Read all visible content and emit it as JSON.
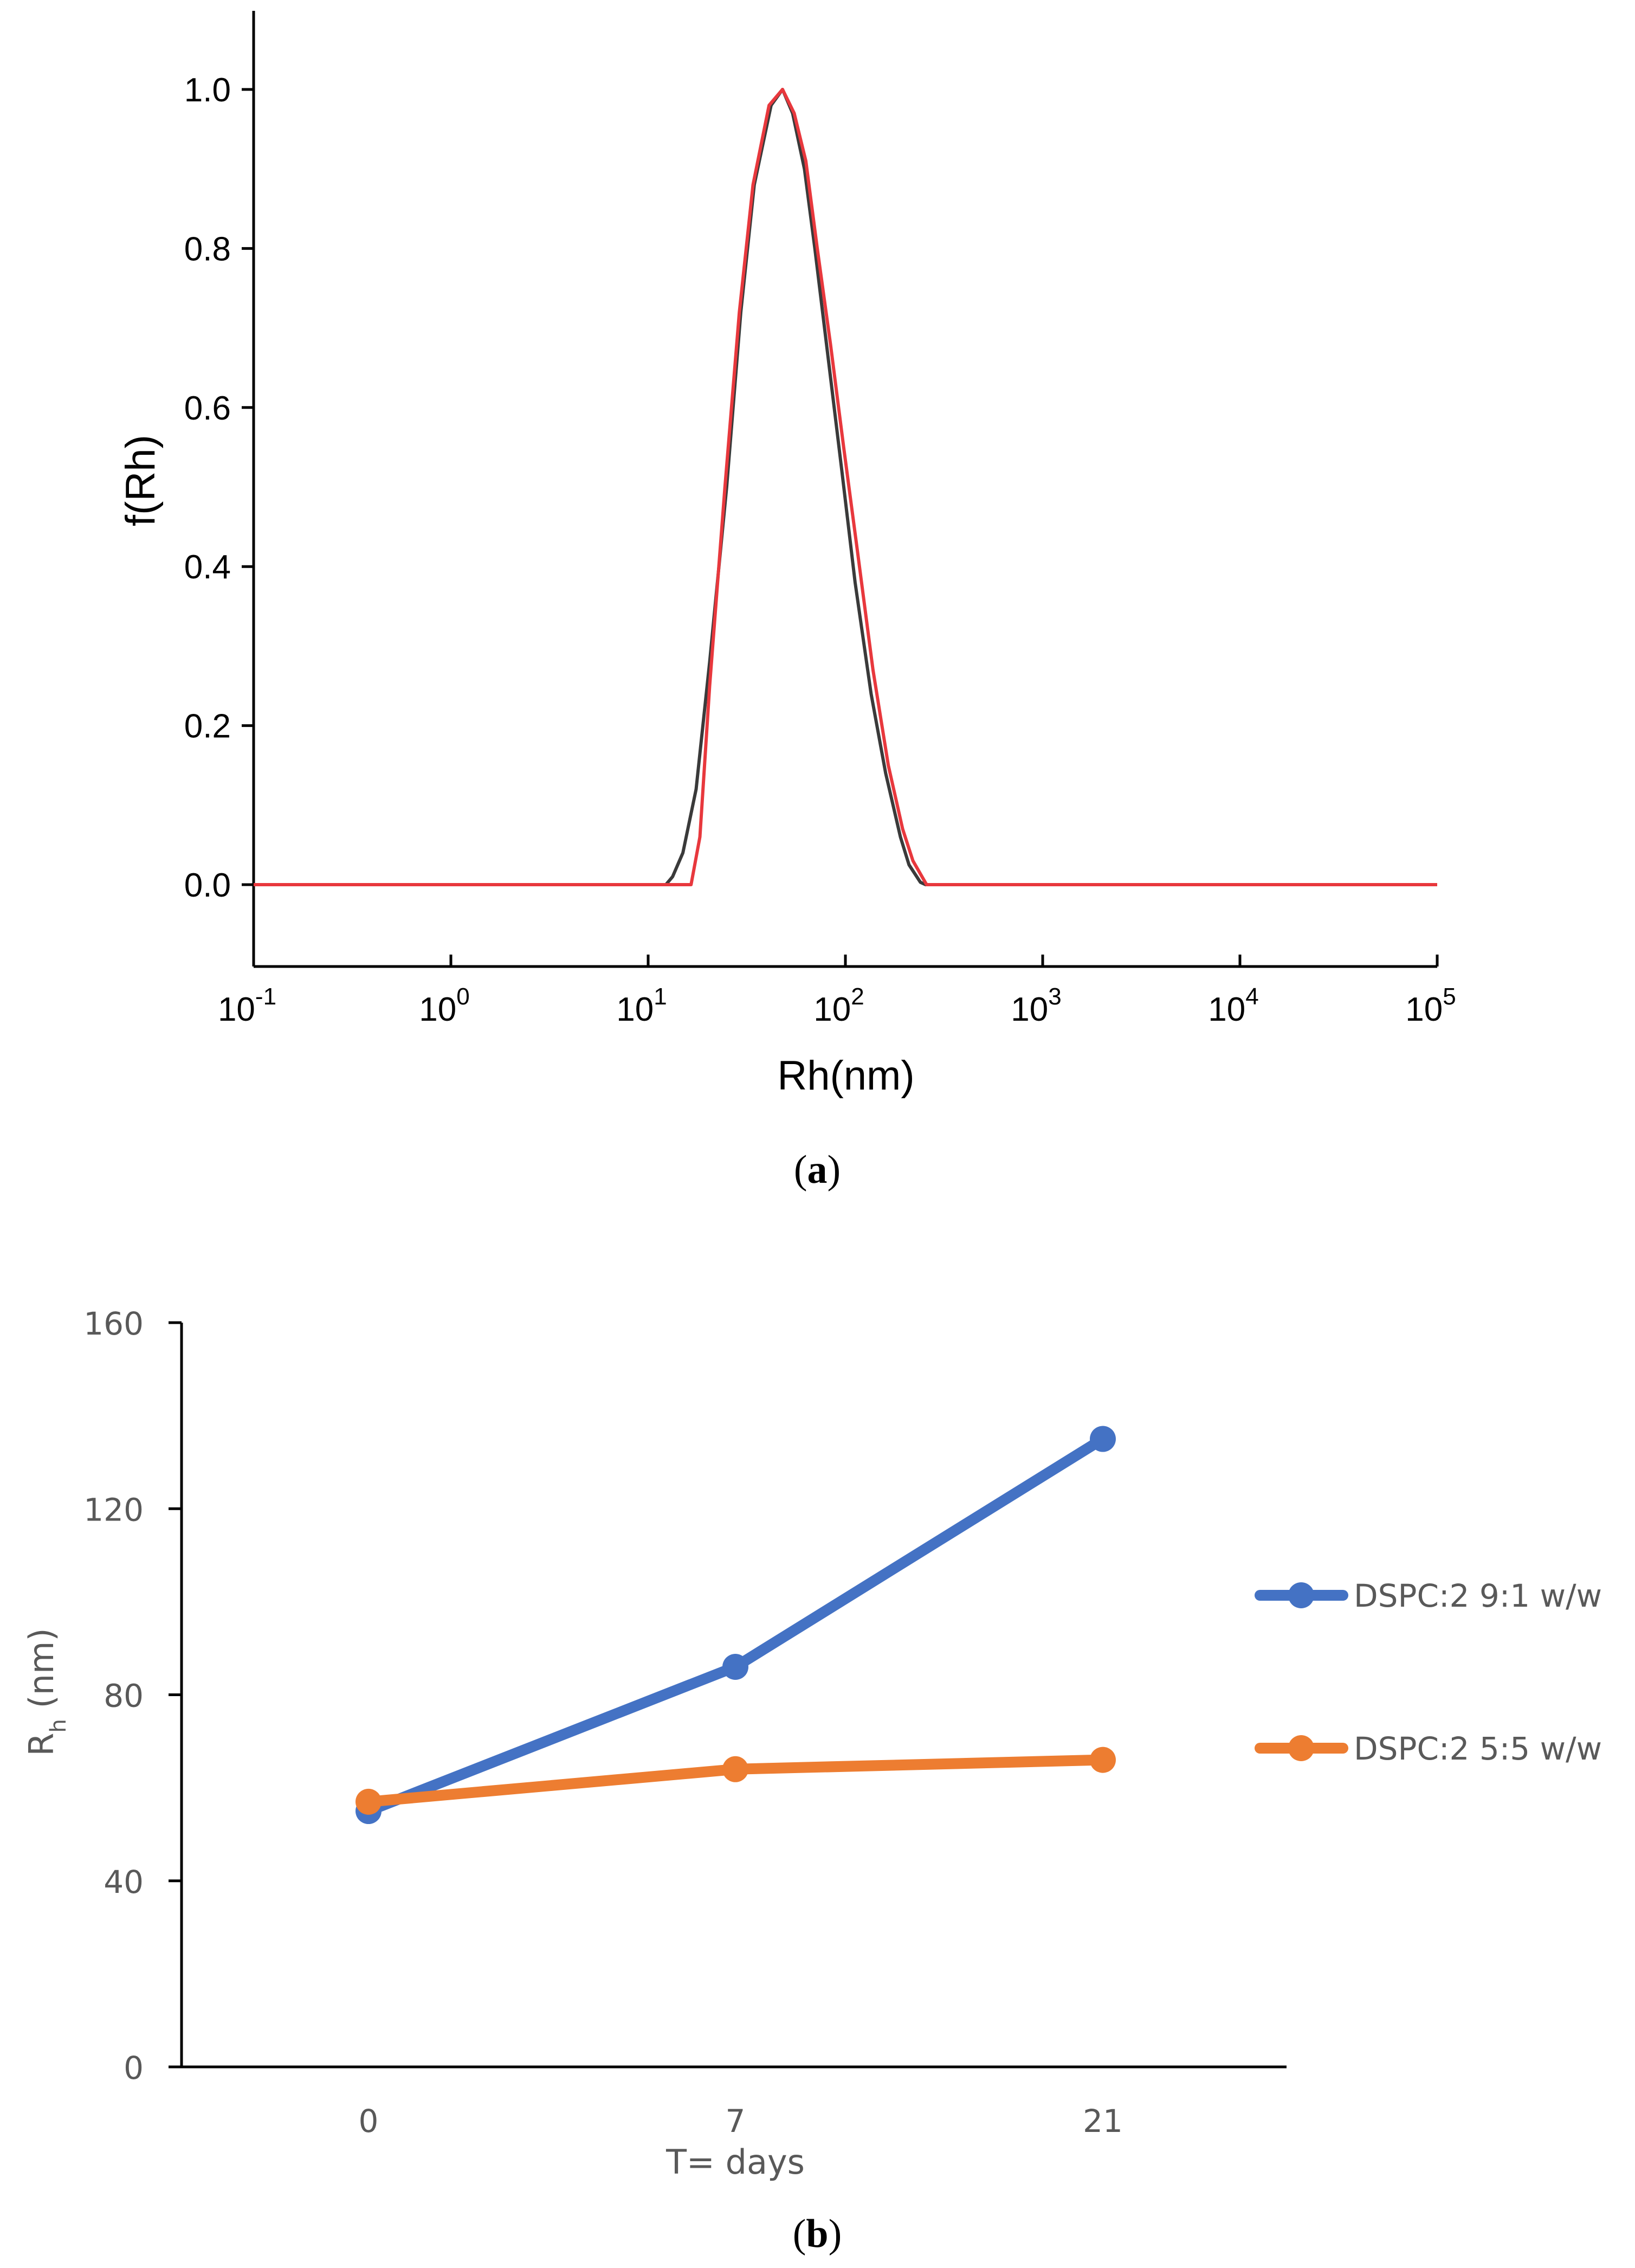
{
  "chart_data": [
    {
      "id": "a",
      "type": "line",
      "xscale": "log",
      "xlim_log10": [
        -1,
        5
      ],
      "ylim": [
        -0.1,
        1.1
      ],
      "xlabel": "Rh(nm)",
      "ylabel": "f(Rh)",
      "caption": {
        "open": "(",
        "letter": "a",
        "close": ")"
      },
      "yticks": [
        {
          "value": 0.0,
          "label": "0.0"
        },
        {
          "value": 0.2,
          "label": "0.2"
        },
        {
          "value": 0.4,
          "label": "0.4"
        },
        {
          "value": 0.6,
          "label": "0.6"
        },
        {
          "value": 0.8,
          "label": "0.8"
        },
        {
          "value": 1.0,
          "label": "1.0"
        }
      ],
      "xticks": [
        {
          "exp": -1,
          "base": "10",
          "power": "-1"
        },
        {
          "exp": 0,
          "base": "10",
          "power": "0"
        },
        {
          "exp": 1,
          "base": "10",
          "power": "1"
        },
        {
          "exp": 2,
          "base": "10",
          "power": "2"
        },
        {
          "exp": 3,
          "base": "10",
          "power": "3"
        },
        {
          "exp": 4,
          "base": "10",
          "power": "4"
        },
        {
          "exp": 5,
          "base": "10",
          "power": "5"
        }
      ],
      "series": [
        {
          "name": "black",
          "color": "#3a3a3a",
          "points": [
            [
              0.1,
              0
            ],
            [
              12.3,
              0
            ],
            [
              13.3,
              0.01
            ],
            [
              15.0,
              0.04
            ],
            [
              17.5,
              0.12
            ],
            [
              20.5,
              0.28
            ],
            [
              25.0,
              0.5
            ],
            [
              29.5,
              0.72
            ],
            [
              34.5,
              0.88
            ],
            [
              42.0,
              0.98
            ],
            [
              48.0,
              1.0
            ],
            [
              54.0,
              0.97
            ],
            [
              62.0,
              0.9
            ],
            [
              70.0,
              0.8
            ],
            [
              82.0,
              0.66
            ],
            [
              96.0,
              0.52
            ],
            [
              112.0,
              0.38
            ],
            [
              135.0,
              0.24
            ],
            [
              160.0,
              0.14
            ],
            [
              190.0,
              0.06
            ],
            [
              210.0,
              0.025
            ],
            [
              240.0,
              0.003
            ],
            [
              255.0,
              0
            ],
            [
              100000,
              0
            ]
          ]
        },
        {
          "name": "red",
          "color": "#e8383d",
          "points": [
            [
              0.1,
              0
            ],
            [
              16.5,
              0
            ],
            [
              18.3,
              0.06
            ],
            [
              20.5,
              0.25
            ],
            [
              24.5,
              0.5
            ],
            [
              29.0,
              0.72
            ],
            [
              34.0,
              0.88
            ],
            [
              41.0,
              0.98
            ],
            [
              48.0,
              1.0
            ],
            [
              55.0,
              0.97
            ],
            [
              63.0,
              0.91
            ],
            [
              72.0,
              0.8
            ],
            [
              84.0,
              0.68
            ],
            [
              98.0,
              0.55
            ],
            [
              115.0,
              0.42
            ],
            [
              138.0,
              0.27
            ],
            [
              165.0,
              0.15
            ],
            [
              195.0,
              0.07
            ],
            [
              220.0,
              0.03
            ],
            [
              258.0,
              0
            ],
            [
              100000,
              0
            ]
          ]
        }
      ]
    },
    {
      "id": "b",
      "type": "line",
      "categories": [
        "0",
        "7",
        "21"
      ],
      "ylim": [
        0,
        160
      ],
      "yticks": [
        "0",
        "40",
        "80",
        "120",
        "160"
      ],
      "ylabel": {
        "main": "R",
        "sub": "h",
        "rest": " (nm)"
      },
      "xlabel": "T= days",
      "caption": {
        "open": "(",
        "letter": "b",
        "close": ")"
      },
      "series": [
        {
          "name": "DSPC:2 9:1 w/w",
          "color": "#4472c4",
          "values": [
            55,
            86,
            135
          ]
        },
        {
          "name": "DSPC:2 5:5 w/w",
          "color": "#ed7d31",
          "values": [
            57,
            64,
            66
          ]
        }
      ]
    }
  ]
}
